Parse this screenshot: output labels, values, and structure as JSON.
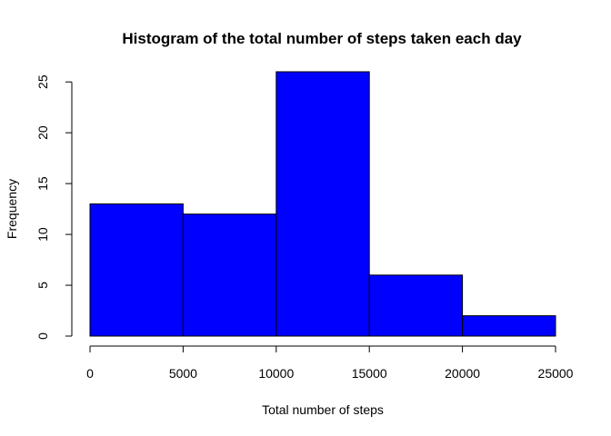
{
  "chart_data": {
    "type": "bar",
    "subtype": "histogram",
    "title": "Histogram of the total number of steps taken each day",
    "xlabel": "Total number of steps",
    "ylabel": "Frequency",
    "bins": [
      {
        "from": 0,
        "to": 5000,
        "value": 13
      },
      {
        "from": 5000,
        "to": 10000,
        "value": 12
      },
      {
        "from": 10000,
        "to": 15000,
        "value": 26
      },
      {
        "from": 15000,
        "to": 20000,
        "value": 6
      },
      {
        "from": 20000,
        "to": 25000,
        "value": 2
      }
    ],
    "xlim": [
      0,
      25000
    ],
    "ylim": [
      0,
      26
    ],
    "x_ticks": [
      0,
      5000,
      10000,
      15000,
      20000,
      25000
    ],
    "y_ticks": [
      0,
      5,
      10,
      15,
      20,
      25
    ],
    "bar_color": "#0000ff",
    "edge_color": "#000000",
    "grid": false,
    "legend": "none"
  }
}
